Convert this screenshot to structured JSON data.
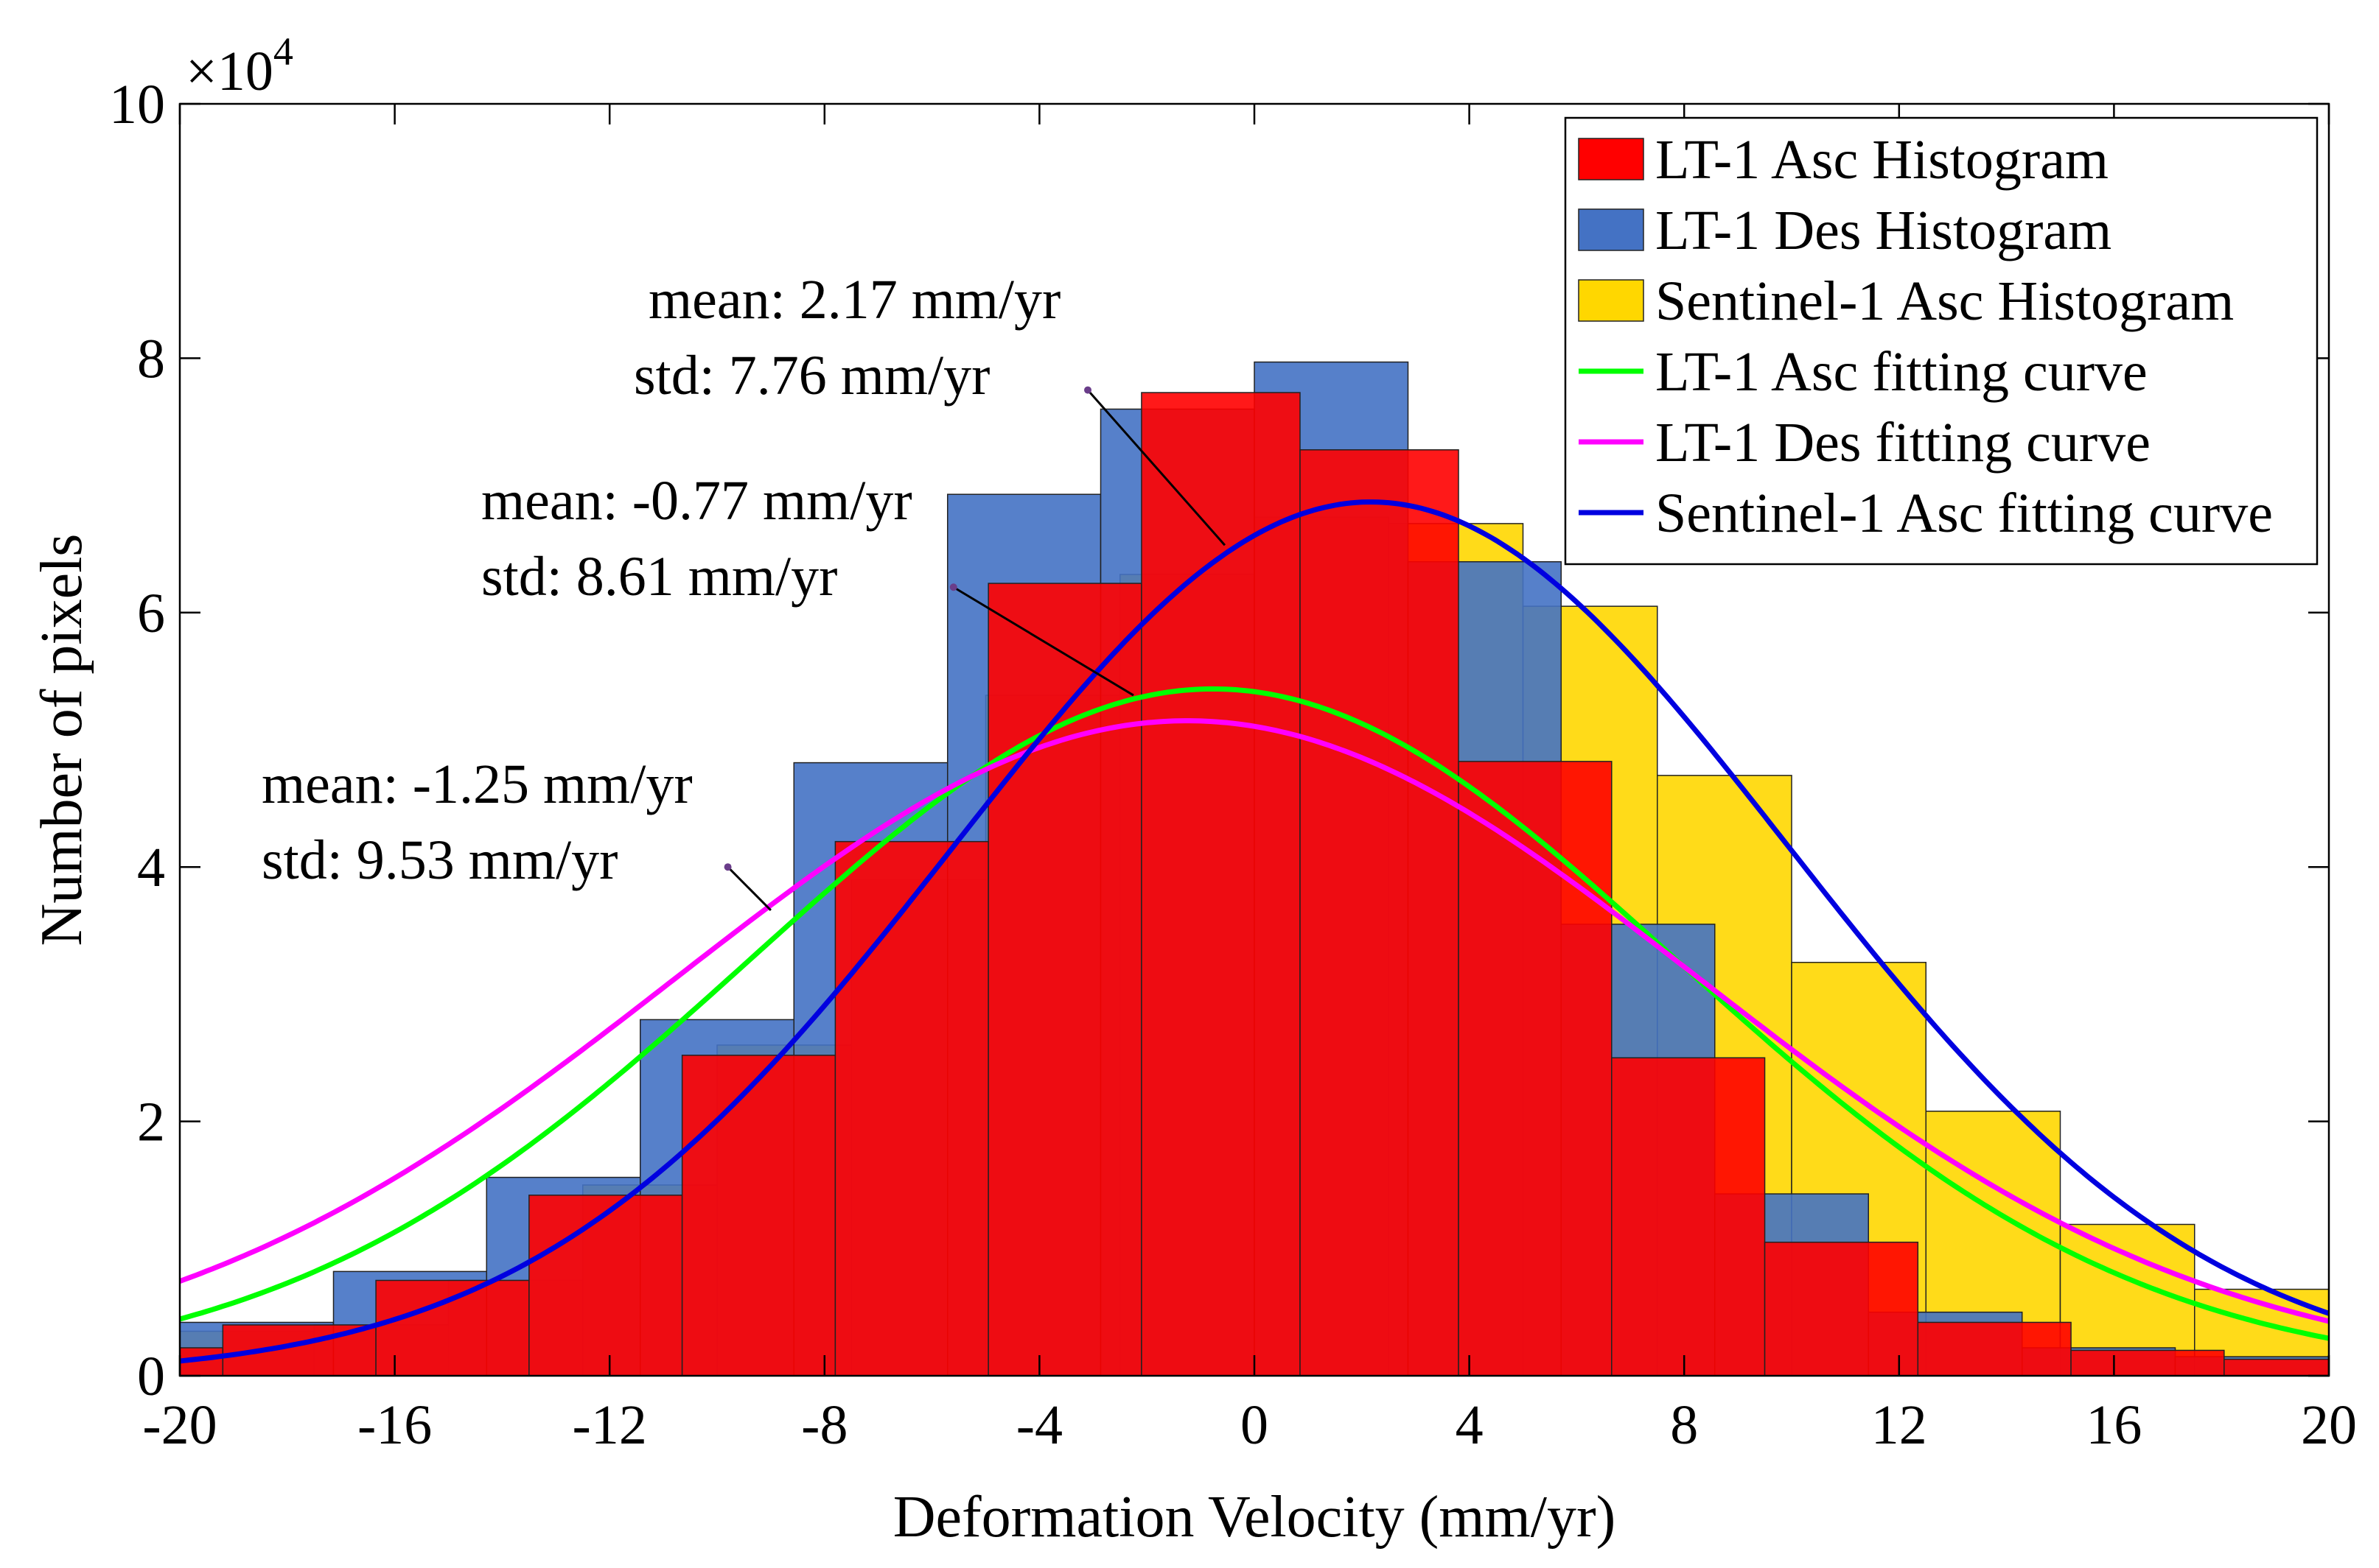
{
  "chart_data": {
    "type": "bar",
    "xlabel": "Deformation Velocity (mm/yr)",
    "ylabel": "Number of pixels",
    "exponent_label": "×10",
    "exponent_power": "4",
    "xlim": [
      -20,
      20
    ],
    "ylim": [
      0,
      10
    ],
    "y_unit_multiplier": 10000,
    "xticks": [
      -20,
      -16,
      -12,
      -8,
      -4,
      0,
      4,
      8,
      12,
      16,
      20
    ],
    "yticks": [
      0,
      2,
      4,
      6,
      8,
      10
    ],
    "grid": false,
    "legend_position": "top-right",
    "series": [
      {
        "name": "Sentinel-1 Asc Histogram",
        "kind": "histogram",
        "color": "#ffd700",
        "bins": [
          {
            "x0": -20.0,
            "x1": -17.5,
            "y": 0.35
          },
          {
            "x0": -17.5,
            "x1": -15.0,
            "y": 0.4
          },
          {
            "x0": -15.0,
            "x1": -12.5,
            "y": 0.75
          },
          {
            "x0": -12.5,
            "x1": -10.0,
            "y": 1.5
          },
          {
            "x0": -10.0,
            "x1": -7.5,
            "y": 2.6
          },
          {
            "x0": -7.5,
            "x1": -5.0,
            "y": 3.9
          },
          {
            "x0": -5.0,
            "x1": -2.5,
            "y": 5.35
          },
          {
            "x0": -2.5,
            "x1": 0.0,
            "y": 6.3
          },
          {
            "x0": 0.0,
            "x1": 2.5,
            "y": 6.75
          },
          {
            "x0": 2.5,
            "x1": 5.0,
            "y": 6.7
          },
          {
            "x0": 5.0,
            "x1": 7.5,
            "y": 6.05
          },
          {
            "x0": 7.5,
            "x1": 10.0,
            "y": 4.72
          },
          {
            "x0": 10.0,
            "x1": 12.5,
            "y": 3.25
          },
          {
            "x0": 12.5,
            "x1": 15.0,
            "y": 2.08
          },
          {
            "x0": 15.0,
            "x1": 17.5,
            "y": 1.19
          },
          {
            "x0": 17.5,
            "x1": 20.0,
            "y": 0.68
          }
        ]
      },
      {
        "name": "LT-1 Des Histogram",
        "kind": "histogram",
        "color": "#4472c4",
        "bins": [
          {
            "x0": -20.0,
            "x1": -17.14,
            "y": 0.42
          },
          {
            "x0": -17.14,
            "x1": -14.29,
            "y": 0.82
          },
          {
            "x0": -14.29,
            "x1": -11.43,
            "y": 1.56
          },
          {
            "x0": -11.43,
            "x1": -8.57,
            "y": 2.8
          },
          {
            "x0": -8.57,
            "x1": -5.71,
            "y": 4.82
          },
          {
            "x0": -5.71,
            "x1": -2.86,
            "y": 6.93
          },
          {
            "x0": -2.86,
            "x1": 0.0,
            "y": 7.6
          },
          {
            "x0": 0.0,
            "x1": 2.86,
            "y": 7.97
          },
          {
            "x0": 2.86,
            "x1": 5.71,
            "y": 6.4
          },
          {
            "x0": 5.71,
            "x1": 8.57,
            "y": 3.55
          },
          {
            "x0": 8.57,
            "x1": 11.43,
            "y": 1.43
          },
          {
            "x0": 11.43,
            "x1": 14.29,
            "y": 0.5
          },
          {
            "x0": 14.29,
            "x1": 17.14,
            "y": 0.22
          },
          {
            "x0": 17.14,
            "x1": 20.0,
            "y": 0.15
          }
        ]
      },
      {
        "name": "LT-1 Asc Histogram",
        "kind": "histogram",
        "color": "#ff0000",
        "bins": [
          {
            "x0": -20.0,
            "x1": -19.2,
            "y": 0.22
          },
          {
            "x0": -19.2,
            "x1": -16.35,
            "y": 0.4
          },
          {
            "x0": -16.35,
            "x1": -13.5,
            "y": 0.75
          },
          {
            "x0": -13.5,
            "x1": -10.65,
            "y": 1.42
          },
          {
            "x0": -10.65,
            "x1": -7.8,
            "y": 2.52
          },
          {
            "x0": -7.8,
            "x1": -4.95,
            "y": 4.2
          },
          {
            "x0": -4.95,
            "x1": -2.1,
            "y": 6.23
          },
          {
            "x0": -2.1,
            "x1": 0.85,
            "y": 7.73
          },
          {
            "x0": 0.85,
            "x1": 3.8,
            "y": 7.28
          },
          {
            "x0": 3.8,
            "x1": 6.65,
            "y": 4.83
          },
          {
            "x0": 6.65,
            "x1": 9.5,
            "y": 2.5
          },
          {
            "x0": 9.5,
            "x1": 12.35,
            "y": 1.05
          },
          {
            "x0": 12.35,
            "x1": 15.2,
            "y": 0.42
          },
          {
            "x0": 15.2,
            "x1": 18.05,
            "y": 0.2
          },
          {
            "x0": 18.05,
            "x1": 20.0,
            "y": 0.13
          }
        ]
      },
      {
        "name": "LT-1 Asc fitting curve",
        "kind": "normal_fit",
        "color": "#00ff00",
        "mean": -0.77,
        "std": 8.61,
        "peak": 5.4
      },
      {
        "name": "LT-1 Des fitting curve",
        "kind": "normal_fit",
        "color": "#ff00ff",
        "mean": -1.25,
        "std": 9.53,
        "peak": 5.15
      },
      {
        "name": "Sentinel-1 Asc fitting curve",
        "kind": "normal_fit",
        "color": "#0000e0",
        "mean": 2.17,
        "std": 7.76,
        "peak": 6.87
      }
    ],
    "legend_order": [
      2,
      1,
      0,
      3,
      4,
      5
    ],
    "annotations": [
      {
        "mean_text": "mean: 2.17 mm/yr",
        "std_text": "std: 7.76 mm/yr",
        "curve": "Sentinel-1 Asc fitting curve",
        "arrow_from": [
          -3.1,
          7.75
        ],
        "arrow_to": [
          -0.55,
          6.53
        ]
      },
      {
        "mean_text": "mean: -0.77 mm/yr",
        "std_text": "std: 8.61 mm/yr",
        "curve": "LT-1 Asc fitting curve",
        "arrow_from": [
          -5.6,
          6.2
        ],
        "arrow_to": [
          -2.25,
          5.35
        ]
      },
      {
        "mean_text": "mean: -1.25 mm/yr",
        "std_text": "std: 9.53 mm/yr",
        "curve": "LT-1 Des fitting curve",
        "arrow_from": [
          -9.8,
          4.0
        ],
        "arrow_to": [
          -9.0,
          3.66
        ]
      }
    ]
  }
}
